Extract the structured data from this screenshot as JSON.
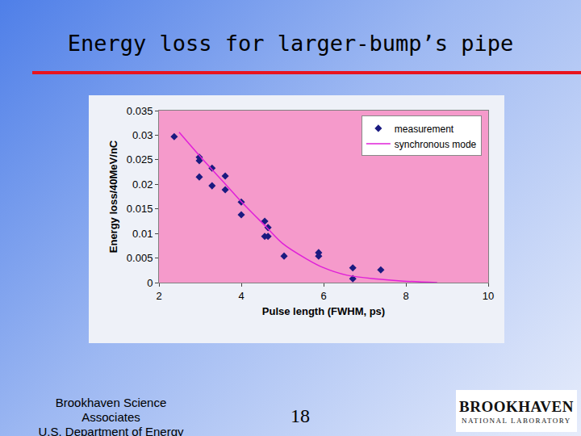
{
  "slide": {
    "title": "Energy loss for larger-bump’s pipe",
    "footer": [
      "Brookhaven Science",
      "Associates",
      "U.S. Department of Energy"
    ],
    "page": "18",
    "logo": [
      "BROOKHAVEN",
      "NATIONAL LABORATORY"
    ]
  },
  "chart_data": {
    "type": "scatter",
    "x_label": "Pulse length (FWHM, ps)",
    "y_label": "Energy loss/40MeV/nC",
    "xlim": [
      2,
      10
    ],
    "xticks": [
      2,
      4,
      6,
      8,
      10
    ],
    "ylim": [
      0,
      0.035
    ],
    "yticks": [
      0,
      0.005,
      0.01,
      0.015,
      0.02,
      0.025,
      0.03,
      0.035
    ],
    "grid": false,
    "legend": "top right",
    "series": [
      {
        "name": "measurement",
        "type": "scatter",
        "marker": "diamond",
        "color": "#1a1a80",
        "x": [
          2.37,
          2.98,
          2.98,
          2.98,
          3.29,
          3.29,
          3.61,
          3.61,
          4.0,
          4.0,
          4.57,
          4.65,
          4.57,
          4.65,
          5.04,
          5.88,
          5.88,
          6.71,
          6.71,
          7.39
        ],
        "values": [
          0.0297,
          0.0255,
          0.0248,
          0.0215,
          0.0233,
          0.0197,
          0.0217,
          0.0189,
          0.0164,
          0.0138,
          0.0125,
          0.0112,
          0.0094,
          0.0094,
          0.0054,
          0.0061,
          0.0054,
          0.003,
          0.0008,
          0.0026
        ]
      },
      {
        "name": "synchronous mode",
        "type": "line",
        "line_style": "solid",
        "color": "#e020d8",
        "x": [
          2.49,
          3.04,
          3.63,
          4.02,
          4.61,
          5.0,
          5.59,
          5.98,
          6.57,
          7.35,
          7.94,
          8.76
        ],
        "values": [
          0.0306,
          0.0253,
          0.0199,
          0.0163,
          0.0113,
          0.008,
          0.0048,
          0.0031,
          0.0015,
          0.0007,
          0.0003,
          0.0
        ]
      }
    ]
  }
}
